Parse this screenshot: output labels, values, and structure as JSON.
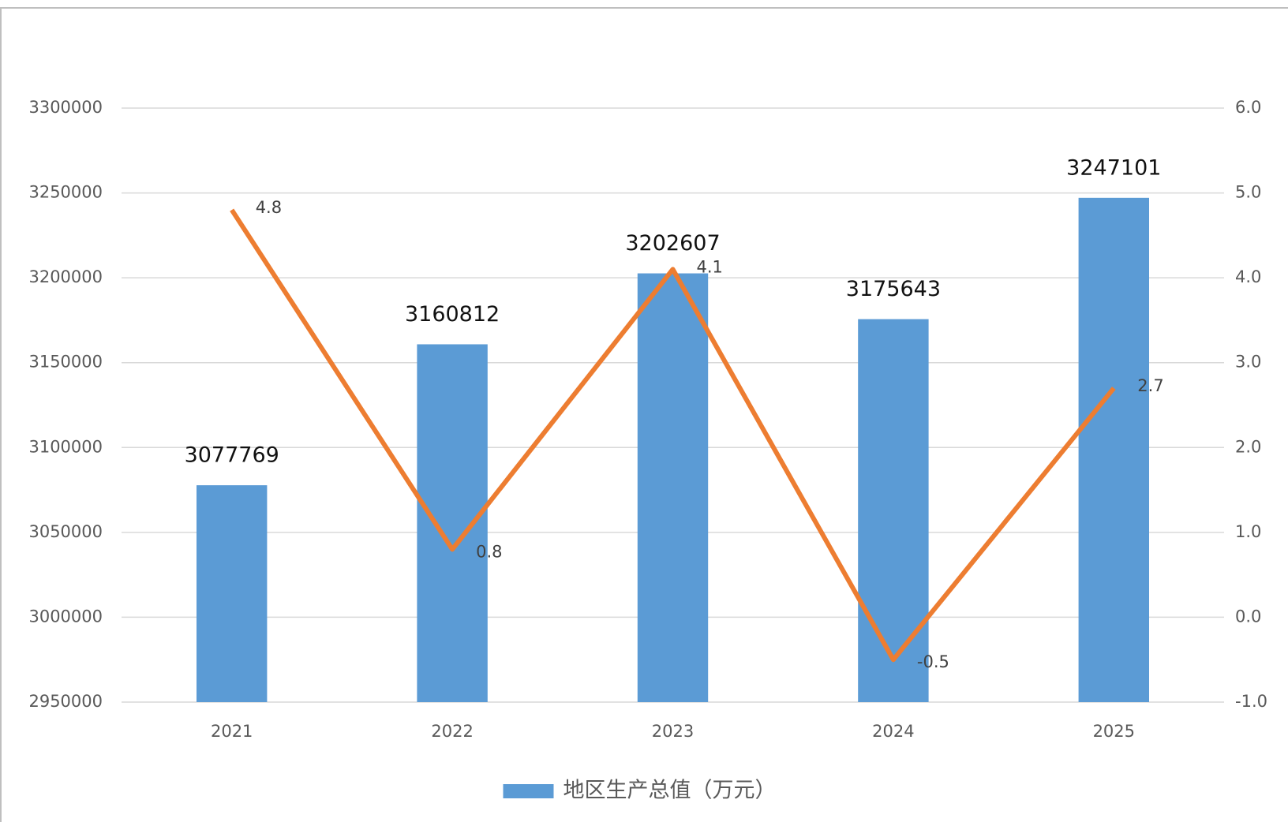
{
  "chart_data": {
    "type": "combo",
    "categories": [
      "2021",
      "2022",
      "2023",
      "2024",
      "2025"
    ],
    "series": [
      {
        "name": "地区生产总值（万元）",
        "type": "bar",
        "color": "#5b9bd5",
        "values": [
          3077769,
          3160812,
          3202607,
          3175643,
          3247101
        ]
      },
      {
        "type": "line",
        "axis": "y2",
        "color": "#ed7d31",
        "values": [
          4.8,
          0.8,
          4.1,
          -0.5,
          2.7
        ]
      }
    ],
    "ylim": [
      2950000,
      3300000
    ],
    "yticks": [
      2950000,
      3000000,
      3050000,
      3100000,
      3150000,
      3200000,
      3250000,
      3300000
    ],
    "y2lim": [
      -1.0,
      6.0
    ],
    "y2ticks": [
      {
        "value": -1.0,
        "label": "-1.0"
      },
      {
        "value": 0,
        "label": "0.0"
      },
      {
        "value": 1,
        "label": "1.0"
      },
      {
        "value": 2,
        "label": "2.0"
      },
      {
        "value": 3,
        "label": "3.0"
      },
      {
        "value": 4,
        "label": "4.0"
      },
      {
        "value": 5,
        "label": "5.0"
      },
      {
        "value": 6,
        "label": "6.0"
      }
    ],
    "grid": true,
    "legend": "bottom"
  }
}
